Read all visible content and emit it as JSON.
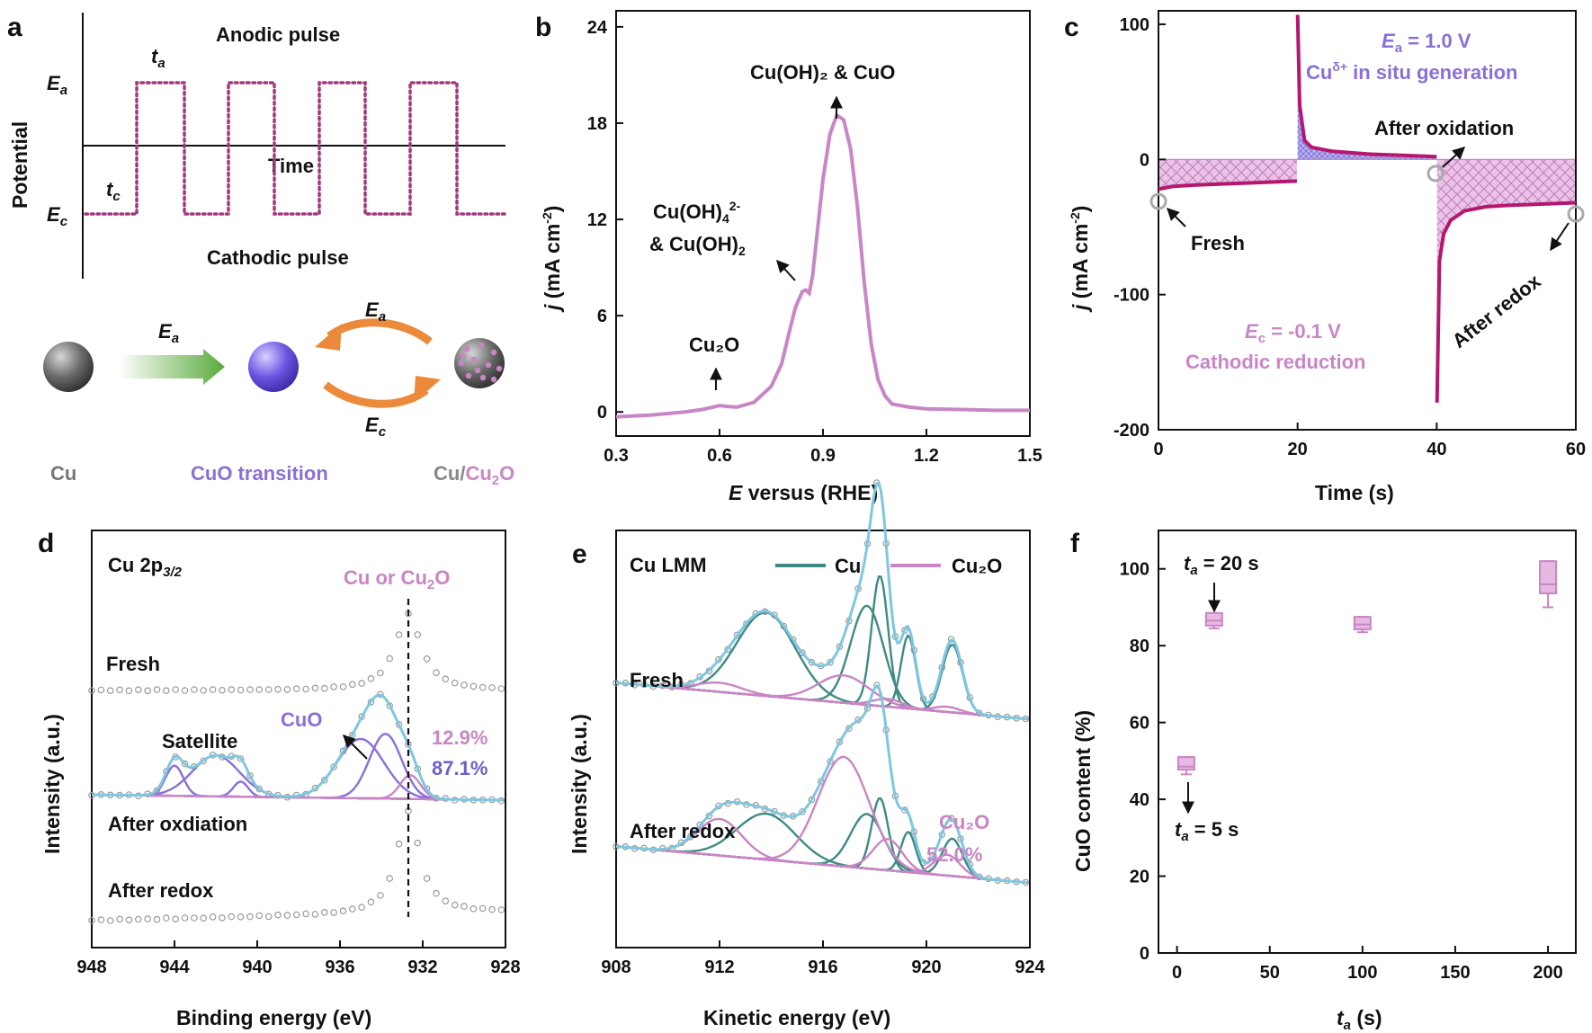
{
  "colors": {
    "pink": "#c886c4",
    "magenta": "#b5176e",
    "purple": "#8a70d6",
    "teal": "#3f8a84",
    "cyan": "#7fc7de",
    "gray": "#9a9a9a",
    "green": "#5aaa3c",
    "orange": "#ec8a3c"
  },
  "panel_a": {
    "letter": "a",
    "ylabel": "Potential",
    "xlabel": "Time",
    "anodic": "Anodic pulse",
    "cathodic": "Cathodic pulse",
    "ea": "E",
    "ea_sub": "a",
    "ec": "E",
    "ec_sub": "c",
    "ta": "t",
    "ta_sub": "a",
    "tc": "t",
    "tc_sub": "c",
    "cu": "Cu",
    "cuo_transition": "CuO transition",
    "cu_cu2o_1": "Cu/",
    "cu_cu2o_2": "Cu",
    "cu_cu2o_3": "2",
    "cu_cu2o_4": "O"
  },
  "chart_data": [
    {
      "panel": "b",
      "type": "line",
      "xlabel_italic": "E",
      "xlabel": " versus (RHE)",
      "ylabel_italic": "j",
      "ylabel": " (mA cm",
      "ylabel_sup": "-2",
      "ylabel_end": ")",
      "xlim": [
        0.3,
        1.5
      ],
      "ylim": [
        -1.5,
        25
      ],
      "xticks": [
        "0.3",
        "0.6",
        "0.9",
        "1.2",
        "1.5"
      ],
      "yticks": [
        "0",
        "6",
        "12",
        "18",
        "24"
      ],
      "annotations": {
        "peak1": "Cu(OH)₂ & CuO",
        "peak2a": "Cu(OH)",
        "peak2a_sub": "4",
        "peak2a_sup": "2-",
        "peak2b": "& Cu(OH)",
        "peak2b_sub": "2",
        "peak3": "Cu₂O"
      },
      "series": [
        {
          "x": [
            0.3,
            0.4,
            0.5,
            0.55,
            0.58,
            0.6,
            0.62,
            0.65,
            0.7,
            0.75,
            0.78,
            0.8,
            0.82,
            0.84,
            0.85,
            0.86,
            0.87,
            0.88,
            0.9,
            0.92,
            0.94,
            0.96,
            0.98,
            1.0,
            1.02,
            1.04,
            1.06,
            1.08,
            1.1,
            1.15,
            1.2,
            1.3,
            1.4,
            1.5
          ],
          "y": [
            -0.3,
            -0.2,
            0.0,
            0.15,
            0.3,
            0.4,
            0.35,
            0.3,
            0.6,
            1.6,
            3.0,
            4.8,
            6.5,
            7.5,
            7.6,
            7.4,
            8.5,
            10.5,
            14.5,
            17.3,
            18.5,
            18.2,
            16.4,
            12.8,
            8.0,
            4.2,
            2.0,
            1.0,
            0.5,
            0.3,
            0.2,
            0.15,
            0.1,
            0.1
          ]
        }
      ]
    },
    {
      "panel": "c",
      "type": "line",
      "xlabel": "Time (s)",
      "ylabel_italic": "j",
      "ylabel": " (mA cm",
      "ylabel_sup": "-2",
      "ylabel_end": ")",
      "xlim": [
        0,
        60
      ],
      "ylim": [
        -200,
        110
      ],
      "xticks": [
        "0",
        "20",
        "40",
        "60"
      ],
      "yticks": [
        "-200",
        "-100",
        "0",
        "100"
      ],
      "annotations": {
        "ea_label": "E",
        "ea_sub": "a",
        "ea_val": " = 1.0 V",
        "cu_gen": "Cu",
        "cu_gen_sup": "δ+",
        "cu_gen_end": " in situ generation",
        "after_oxidation": "After oxidation",
        "fresh": "Fresh",
        "after_redox": "After redox",
        "ec_label": "E",
        "ec_sub": "c",
        "ec_val": " = -0.1 V",
        "cathodic_reduction": "Cathodic reduction"
      },
      "series": [
        {
          "x": [
            0,
            2,
            5,
            10,
            15,
            19.9,
            20,
            20.3,
            21,
            22,
            25,
            30,
            35,
            40,
            40.05,
            40.4,
            41,
            42,
            44,
            47,
            50,
            55,
            60
          ],
          "y": [
            -22,
            -20,
            -19,
            -18,
            -17,
            -16,
            107,
            40,
            14,
            9,
            6,
            4,
            3,
            2,
            -180,
            -75,
            -55,
            -45,
            -38,
            -35,
            -34,
            -33,
            -32
          ]
        }
      ]
    },
    {
      "panel": "d",
      "type": "line",
      "title": "Cu  2p",
      "title_sub": "3/2",
      "xlabel": "Binding energy (eV)",
      "ylabel": "Intensity (a.u.)",
      "xlim": [
        948,
        928
      ],
      "xticks": [
        "948",
        "944",
        "940",
        "936",
        "932",
        "928"
      ],
      "annotations": {
        "cu_or_cu2o_1": "Cu or Cu",
        "cu_or_cu2o_2": "2",
        "cu_or_cu2o_3": "O",
        "fresh": "Fresh",
        "satellite": "Satellite",
        "cuo": "CuO",
        "pct_pink": "12.9%",
        "pct_purple": "87.1%",
        "after_oxidation": "After oxdiation",
        "after_redox": "After redox"
      },
      "peak_center_eV": 932.7,
      "cuo_peaks_eV": [
        933.8,
        935.0
      ],
      "satellite_peaks_eV": [
        944.0,
        942.0,
        940.8
      ]
    },
    {
      "panel": "e",
      "type": "line",
      "title": "Cu  LMM",
      "xlabel": "Kinetic energy (eV)",
      "ylabel": "Intensity (a.u.)",
      "xlim": [
        908,
        924
      ],
      "xticks": [
        "908",
        "912",
        "916",
        "920",
        "924"
      ],
      "legend": [
        "Cu",
        "Cu₂O"
      ],
      "legend_placement": "top",
      "annotations": {
        "fresh": "Fresh",
        "after_redox": "After redox",
        "cu2o": "Cu₂O",
        "cu2o_pct": "52.0%"
      },
      "cu_peaks_eV": [
        913.8,
        917.7,
        918.2,
        919.3,
        921.0
      ],
      "cu2o_peaks_eV": [
        916.8
      ]
    },
    {
      "panel": "f",
      "type": "scatter",
      "xlabel_italic": "t",
      "xlabel_sub": "a",
      "xlabel": " (s)",
      "ylabel": "CuO content (%)",
      "xlim": [
        -10,
        215
      ],
      "ylim": [
        0,
        110
      ],
      "xticks": [
        "0",
        "50",
        "100",
        "150",
        "200"
      ],
      "yticks": [
        "0",
        "20",
        "40",
        "60",
        "80",
        "100"
      ],
      "annotations": {
        "ta20": " = 20 s",
        "ta5": " = 5 s",
        "t": "t",
        "a": "a"
      },
      "points": [
        {
          "x": 5,
          "y": 48.5,
          "lo": 46.5,
          "hi": 51
        },
        {
          "x": 20,
          "y": 86.5,
          "lo": 84.5,
          "hi": 88.5
        },
        {
          "x": 100,
          "y": 85.5,
          "lo": 83.5,
          "hi": 87.5
        },
        {
          "x": 200,
          "y": 96,
          "lo": 90,
          "hi": 102
        }
      ]
    }
  ]
}
